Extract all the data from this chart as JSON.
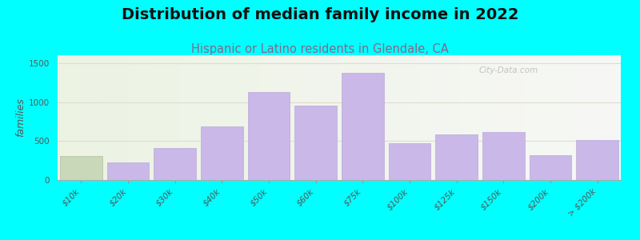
{
  "title": "Distribution of median family income in 2022",
  "subtitle": "Hispanic or Latino residents in Glendale, CA",
  "ylabel": "families",
  "categories": [
    "$10k",
    "$20k",
    "$30k",
    "$40k",
    "$50k",
    "$60k",
    "$75k",
    "$100k",
    "$125k",
    "$150k",
    "$200k",
    "> $200k"
  ],
  "values": [
    310,
    230,
    410,
    690,
    1130,
    950,
    1370,
    470,
    580,
    615,
    320,
    510
  ],
  "bar_color": "#c9b8e8",
  "bar_edge_color": "#bbaad8",
  "first_bar_color": "#c8d8b8",
  "first_bar_edge_color": "#b0c0a0",
  "bg_color": "#00ffff",
  "title_fontsize": 14,
  "subtitle_fontsize": 10.5,
  "ylabel_fontsize": 9,
  "tick_fontsize": 7.5,
  "ylim": [
    0,
    1600
  ],
  "yticks": [
    0,
    500,
    1000,
    1500
  ],
  "watermark": "City-Data.com",
  "grid_color": "#e0ddd0",
  "title_color": "#111111",
  "subtitle_color": "#886688",
  "ylabel_color": "#555555",
  "tick_color": "#555555"
}
